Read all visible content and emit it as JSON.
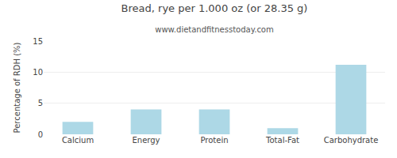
{
  "chart_data": {
    "type": "bar",
    "title": "Bread, rye per 1.000 oz (or 28.35 g)",
    "subtitle": "www.dietandfitnesstoday.com",
    "categories": [
      "Calcium",
      "Energy",
      "Protein",
      "Total-Fat",
      "Carbohydrate"
    ],
    "values": [
      2.0,
      4.0,
      4.0,
      1.0,
      11.2
    ],
    "color": "#add8e6",
    "ylabel": "Percentage of RDH (%)",
    "ylim": [
      0,
      15
    ],
    "yticks": [
      0,
      5,
      10,
      15
    ],
    "grid": true
  }
}
